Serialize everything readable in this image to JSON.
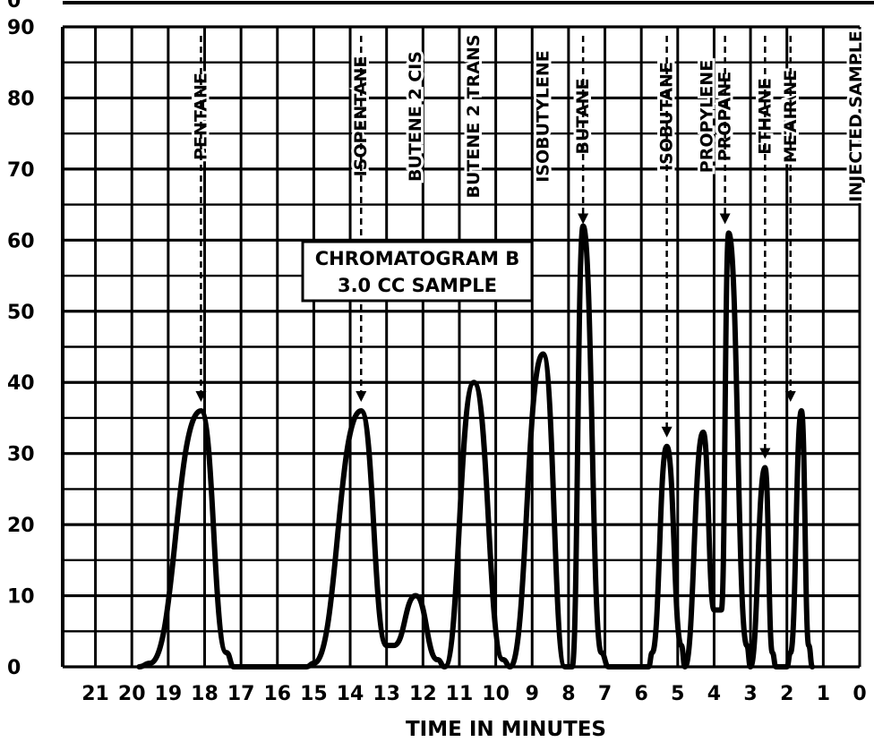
{
  "chart_data": {
    "type": "line",
    "title": "",
    "xlabel": "TIME IN MINUTES",
    "ylabel": "",
    "x_reversed": true,
    "xlim": [
      21.9,
      0
    ],
    "ylim": [
      0,
      90
    ],
    "grid": true,
    "x_ticks": [
      21,
      20,
      19,
      18,
      17,
      16,
      15,
      14,
      13,
      12,
      11,
      10,
      9,
      8,
      7,
      6,
      5,
      4,
      3,
      2,
      1,
      0
    ],
    "x_tick_labels": [
      "21",
      "20",
      "19",
      "18",
      "17",
      "16",
      "15",
      "14",
      "13",
      "12",
      "11",
      "10",
      "9",
      "8",
      "7",
      "6",
      "5",
      "4",
      "3",
      "2",
      "1",
      "0"
    ],
    "y_ticks": [
      0,
      10,
      20,
      30,
      40,
      50,
      60,
      70,
      80,
      90
    ],
    "y_tick_labels": [
      "0",
      "10",
      "20",
      "30",
      "40",
      "50",
      "60",
      "70",
      "80",
      "90"
    ],
    "annotation": [
      "CHROMATOGRAM B",
      "3.0 CC SAMPLE"
    ],
    "peak_labels": [
      {
        "label": "PENTANE",
        "x": 18.1,
        "arrow_y": 37
      },
      {
        "label": "ISOPENTANE",
        "x": 13.7,
        "arrow_y": 37
      },
      {
        "label": "BUTENE 2 CIS",
        "x": 12.2
      },
      {
        "label": "BUTENE 2 TRANS",
        "x": 10.6
      },
      {
        "label": "ISOBUTYLENE",
        "x": 8.7
      },
      {
        "label": "BUTANE",
        "x": 7.6,
        "arrow_y": 62
      },
      {
        "label": "ISOBUTANE",
        "x": 5.3,
        "arrow_y": 32
      },
      {
        "label": "PROPYLENE",
        "x": 4.2
      },
      {
        "label": "PROPANE",
        "x": 3.7,
        "arrow_y": 62
      },
      {
        "label": "ETHANE",
        "x": 2.6,
        "arrow_y": 29
      },
      {
        "label": "METHANE",
        "x": 1.9
      },
      {
        "label": "AIR",
        "x": 1.9,
        "arrow_y": 37
      },
      {
        "label": "INJECTED SAMPLE",
        "x": 0.1
      }
    ],
    "series": [
      {
        "x": [
          19.8,
          19.5,
          18.1,
          17.4,
          17.2,
          15.2,
          15.0,
          13.7,
          13.0,
          12.8,
          12.2,
          11.6,
          11.4,
          10.6,
          9.8,
          9.6,
          8.7,
          8.1,
          7.9,
          7.6,
          7.1,
          6.9,
          5.8,
          5.7,
          5.3,
          4.9,
          4.8,
          4.3,
          4.0,
          3.8,
          3.6,
          3.1,
          3.0,
          2.6,
          2.4,
          2.3,
          2.0,
          1.9,
          1.6,
          1.4,
          1.3
        ],
        "y": [
          0,
          0.5,
          36,
          2,
          0,
          0,
          0.5,
          36,
          3,
          3,
          10,
          1,
          0,
          40,
          1,
          0,
          44,
          0,
          0,
          62,
          2,
          0,
          0,
          2,
          31,
          3,
          0,
          33,
          8,
          8,
          61,
          3,
          0,
          28,
          2,
          0,
          0,
          2,
          36,
          3,
          0
        ]
      }
    ]
  }
}
